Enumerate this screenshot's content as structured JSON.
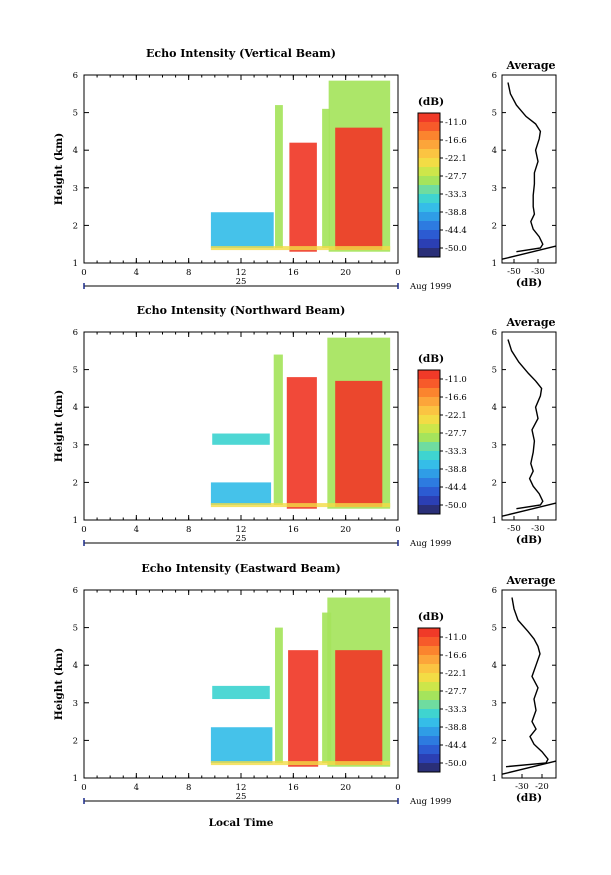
{
  "figure": {
    "xlabel": "Local Time",
    "date_label": "Aug 1999",
    "day_label": "25"
  },
  "chart_data": [
    {
      "type": "heatmap",
      "title": "Echo Intensity (Vertical Beam)",
      "xlabel": "",
      "ylabel": "Height (km)",
      "xlim": [
        0,
        24
      ],
      "ylim": [
        1,
        6
      ],
      "xticks": [
        "0",
        "4",
        "8",
        "12",
        "16",
        "20",
        "0"
      ],
      "yticks": [
        "1",
        "2",
        "3",
        "4",
        "5",
        "6"
      ],
      "colorbar": {
        "label": "(dB)",
        "ticks": [
          "-11.0",
          "-16.6",
          "-22.1",
          "-27.7",
          "-33.3",
          "-38.8",
          "-44.4",
          "-50.0"
        ]
      },
      "palette": [
        "#f03a28",
        "#f75a2a",
        "#fb842e",
        "#fca53a",
        "#fbc442",
        "#f3dc45",
        "#cde64a",
        "#a5e45c",
        "#6fdca0",
        "#3fd4d0",
        "#35bde8",
        "#2f9de6",
        "#2d7be0",
        "#2c5bd2",
        "#2b3fb4",
        "#2a2f78"
      ],
      "regions": [
        {
          "t0": 9.7,
          "t1": 14.5,
          "h0": 1.4,
          "h1": 2.35,
          "level": -36
        },
        {
          "t0": 14.6,
          "t1": 15.2,
          "h0": 1.4,
          "h1": 5.2,
          "level": -28
        },
        {
          "t0": 15.7,
          "t1": 17.8,
          "h0": 1.3,
          "h1": 4.2,
          "level": -12
        },
        {
          "t0": 18.2,
          "t1": 18.8,
          "h0": 1.4,
          "h1": 5.1,
          "level": -30
        },
        {
          "t0": 18.7,
          "t1": 23.4,
          "h0": 1.3,
          "h1": 5.85,
          "level": -30
        },
        {
          "t0": 19.2,
          "t1": 22.8,
          "h0": 1.35,
          "h1": 4.6,
          "level": -12
        }
      ],
      "profile": {
        "title": "Average",
        "xlabel": "(dB)",
        "xticks": [
          "-50",
          "-30"
        ],
        "xlim": [
          -60,
          -15
        ],
        "heights": [
          1.3,
          1.4,
          1.5,
          1.7,
          1.9,
          2.1,
          2.3,
          2.5,
          2.8,
          3.1,
          3.4,
          3.7,
          4.0,
          4.3,
          4.5,
          4.7,
          4.9,
          5.2,
          5.5,
          5.8
        ],
        "db": [
          -48,
          -28,
          -26,
          -29,
          -34,
          -36,
          -33,
          -34,
          -34,
          -33,
          -33,
          -30,
          -32,
          -29,
          -28,
          -32,
          -40,
          -48,
          -53,
          -55
        ]
      }
    },
    {
      "type": "heatmap",
      "title": "Echo Intensity (Northward Beam)",
      "xlabel": "",
      "ylabel": "Height (km)",
      "xlim": [
        0,
        24
      ],
      "ylim": [
        1,
        6
      ],
      "xticks": [
        "0",
        "4",
        "8",
        "12",
        "16",
        "20",
        "0"
      ],
      "yticks": [
        "1",
        "2",
        "3",
        "4",
        "5",
        "6"
      ],
      "colorbar": {
        "label": "(dB)",
        "ticks": [
          "-11.0",
          "-16.6",
          "-22.1",
          "-27.7",
          "-33.3",
          "-38.8",
          "-44.4",
          "-50.0"
        ]
      },
      "palette": [
        "#f03a28",
        "#f75a2a",
        "#fb842e",
        "#fca53a",
        "#fbc442",
        "#f3dc45",
        "#cde64a",
        "#a5e45c",
        "#6fdca0",
        "#3fd4d0",
        "#35bde8",
        "#2f9de6",
        "#2d7be0",
        "#2c5bd2",
        "#2b3fb4",
        "#2a2f78"
      ],
      "regions": [
        {
          "t0": 9.7,
          "t1": 14.3,
          "h0": 1.4,
          "h1": 2.0,
          "level": -36
        },
        {
          "t0": 9.8,
          "t1": 14.2,
          "h0": 3.0,
          "h1": 3.3,
          "level": -34
        },
        {
          "t0": 14.5,
          "t1": 15.2,
          "h0": 1.4,
          "h1": 5.4,
          "level": -28
        },
        {
          "t0": 15.5,
          "t1": 17.8,
          "h0": 1.3,
          "h1": 4.8,
          "level": -12
        },
        {
          "t0": 18.6,
          "t1": 23.4,
          "h0": 1.3,
          "h1": 5.85,
          "level": -30
        },
        {
          "t0": 19.2,
          "t1": 22.8,
          "h0": 1.35,
          "h1": 4.7,
          "level": -12
        }
      ],
      "profile": {
        "title": "Average",
        "xlabel": "(dB)",
        "xticks": [
          "-50",
          "-30"
        ],
        "xlim": [
          -60,
          -15
        ],
        "heights": [
          1.3,
          1.4,
          1.5,
          1.7,
          1.9,
          2.1,
          2.3,
          2.5,
          2.8,
          3.1,
          3.4,
          3.7,
          4.0,
          4.3,
          4.5,
          4.7,
          4.9,
          5.2,
          5.5,
          5.8
        ],
        "db": [
          -48,
          -28,
          -26,
          -29,
          -34,
          -37,
          -34,
          -36,
          -34,
          -33,
          -35,
          -30,
          -32,
          -28,
          -27,
          -32,
          -38,
          -46,
          -52,
          -55
        ]
      }
    },
    {
      "type": "heatmap",
      "title": "Echo Intensity (Eastward Beam)",
      "xlabel": "Local Time",
      "ylabel": "Height (km)",
      "xlim": [
        0,
        24
      ],
      "ylim": [
        1,
        6
      ],
      "xticks": [
        "0",
        "4",
        "8",
        "12",
        "16",
        "20",
        "0"
      ],
      "yticks": [
        "1",
        "2",
        "3",
        "4",
        "5",
        "6"
      ],
      "colorbar": {
        "label": "(dB)",
        "ticks": [
          "-11.0",
          "-16.6",
          "-22.1",
          "-27.7",
          "-33.3",
          "-38.8",
          "-44.4",
          "-50.0"
        ]
      },
      "palette": [
        "#f03a28",
        "#f75a2a",
        "#fb842e",
        "#fca53a",
        "#fbc442",
        "#f3dc45",
        "#cde64a",
        "#a5e45c",
        "#6fdca0",
        "#3fd4d0",
        "#35bde8",
        "#2f9de6",
        "#2d7be0",
        "#2c5bd2",
        "#2b3fb4",
        "#2a2f78"
      ],
      "regions": [
        {
          "t0": 9.7,
          "t1": 14.4,
          "h0": 1.4,
          "h1": 2.35,
          "level": -36
        },
        {
          "t0": 9.8,
          "t1": 14.2,
          "h0": 3.1,
          "h1": 3.45,
          "level": -34
        },
        {
          "t0": 14.6,
          "t1": 15.2,
          "h0": 1.4,
          "h1": 5.0,
          "level": -28
        },
        {
          "t0": 15.6,
          "t1": 17.9,
          "h0": 1.3,
          "h1": 4.4,
          "level": -12
        },
        {
          "t0": 18.2,
          "t1": 18.9,
          "h0": 1.4,
          "h1": 5.4,
          "level": -30
        },
        {
          "t0": 18.6,
          "t1": 23.4,
          "h0": 1.3,
          "h1": 5.8,
          "level": -30
        },
        {
          "t0": 19.2,
          "t1": 22.8,
          "h0": 1.35,
          "h1": 4.4,
          "level": -12
        }
      ],
      "profile": {
        "title": "Average",
        "xlabel": "(dB)",
        "xticks": [
          "-30",
          "-20"
        ],
        "xlim": [
          -40,
          -13
        ],
        "heights": [
          1.3,
          1.4,
          1.5,
          1.7,
          1.9,
          2.1,
          2.3,
          2.5,
          2.8,
          3.1,
          3.4,
          3.7,
          4.0,
          4.3,
          4.5,
          4.7,
          4.9,
          5.2,
          5.5,
          5.8
        ],
        "db": [
          -38,
          -18,
          -17,
          -20,
          -24,
          -26,
          -23,
          -25,
          -23,
          -24,
          -22,
          -25,
          -23,
          -21,
          -22,
          -24,
          -27,
          -32,
          -34,
          -35
        ]
      }
    }
  ]
}
